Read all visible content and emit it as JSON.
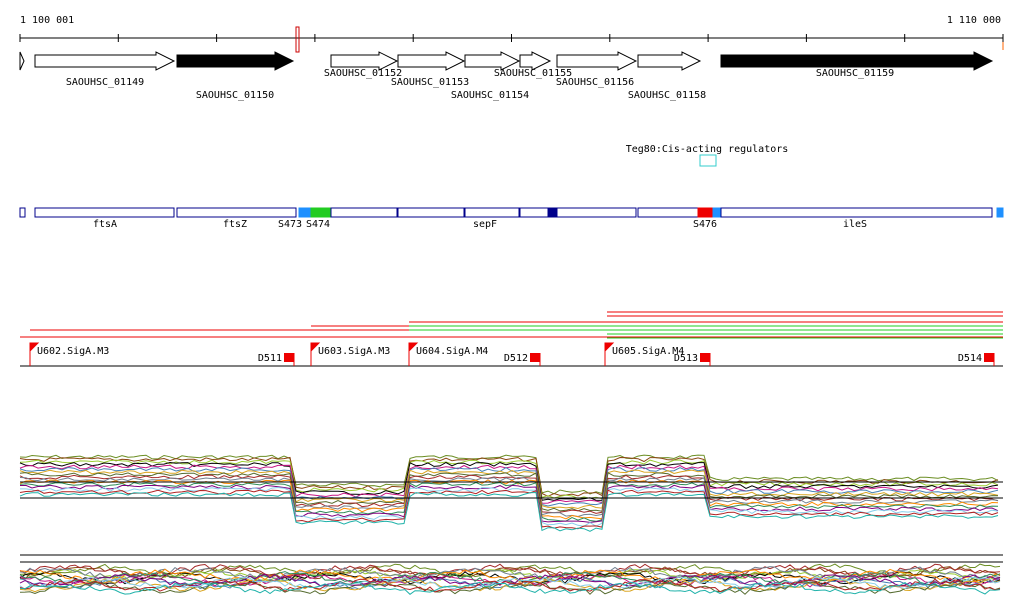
{
  "ruler": {
    "start": "1 100 001",
    "end": "1 110 000"
  },
  "genes": [
    "SAOUHSC_01149",
    "SAOUHSC_01150",
    "SAOUHSC_01152",
    "SAOUHSC_01153",
    "SAOUHSC_01154",
    "SAOUHSC_01155",
    "SAOUHSC_01156",
    "SAOUHSC_01158",
    "SAOUHSC_01159"
  ],
  "regulator": "Teg80:Cis-acting regulators",
  "regions": [
    "ftsA",
    "ftsZ",
    "S473",
    "S474",
    "sepF",
    "S476",
    "ileS"
  ],
  "promoters": [
    "U602.SigA.M3",
    "U603.SigA.M3",
    "U604.SigA.M4",
    "U605.SigA.M4"
  ],
  "terminators": [
    "D511",
    "D512",
    "D513",
    "D514"
  ]
}
